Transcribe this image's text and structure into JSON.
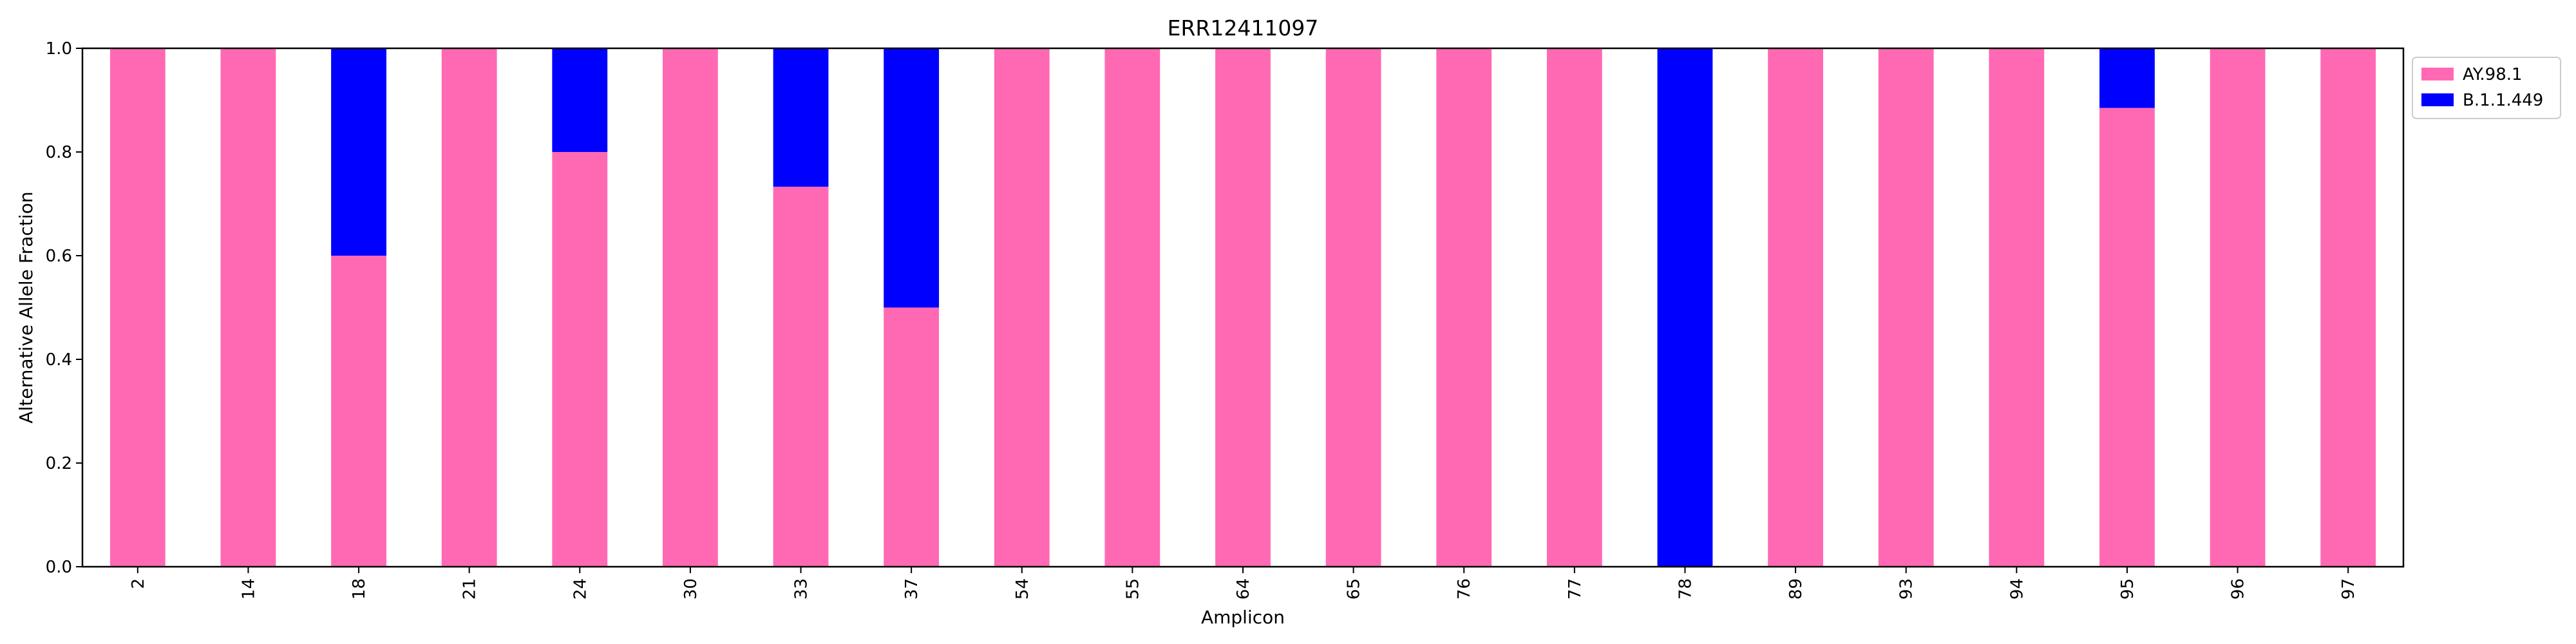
{
  "chart_data": {
    "type": "bar",
    "stacked": true,
    "title": "ERR12411097",
    "xlabel": "Amplicon",
    "ylabel": "Alternative Allele Fraction",
    "ylim": [
      0,
      1.0
    ],
    "yticks": [
      "0.0",
      "0.2",
      "0.4",
      "0.6",
      "0.8",
      "1.0"
    ],
    "grid": false,
    "legend_position": "outside top-right",
    "categories": [
      "2",
      "14",
      "18",
      "21",
      "24",
      "30",
      "33",
      "37",
      "54",
      "55",
      "64",
      "65",
      "76",
      "77",
      "78",
      "89",
      "93",
      "94",
      "95",
      "96",
      "97"
    ],
    "series": [
      {
        "name": "AY.98.1",
        "color": "#ff69b4",
        "values": [
          1.0,
          1.0,
          0.6,
          1.0,
          0.8,
          1.0,
          0.733,
          0.5,
          1.0,
          1.0,
          1.0,
          1.0,
          1.0,
          1.0,
          0.0,
          1.0,
          1.0,
          1.0,
          0.885,
          1.0,
          1.0
        ]
      },
      {
        "name": "B.1.1.449",
        "color": "#0000ff",
        "values": [
          0.0,
          0.0,
          0.4,
          0.0,
          0.2,
          0.0,
          0.267,
          0.5,
          0.0,
          0.0,
          0.0,
          0.0,
          0.0,
          0.0,
          1.0,
          0.0,
          0.0,
          0.0,
          0.115,
          0.0,
          0.0
        ]
      }
    ]
  }
}
